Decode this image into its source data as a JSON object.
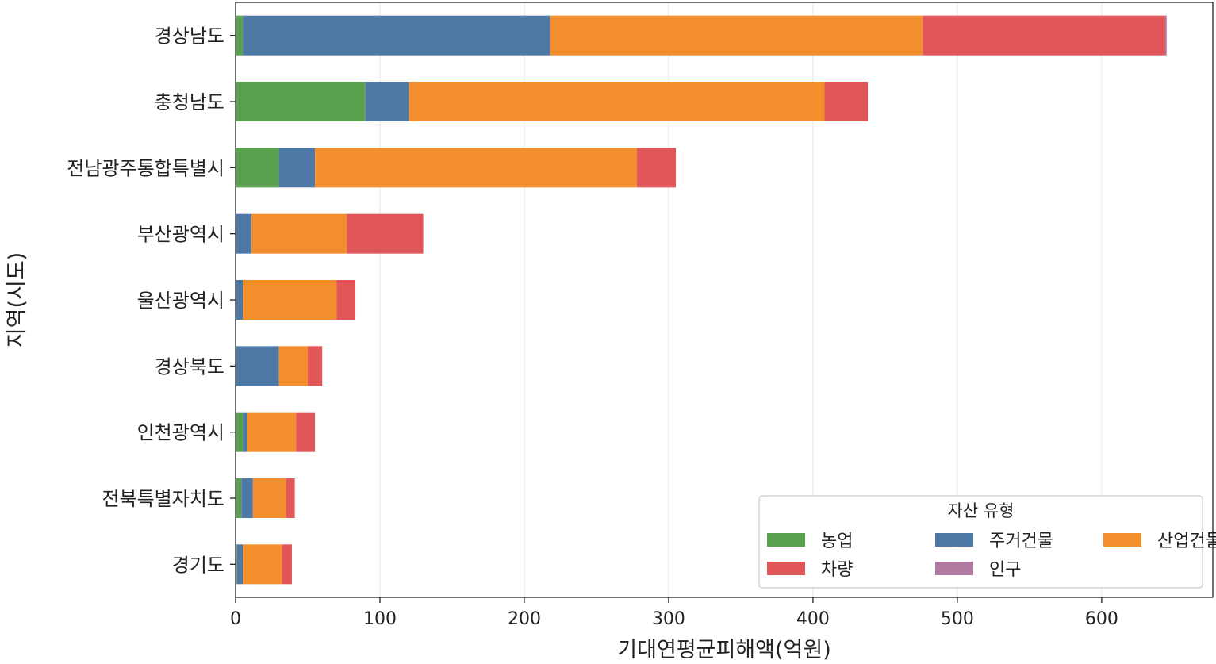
{
  "chart_data": {
    "type": "bar",
    "orientation": "horizontal",
    "stacked": true,
    "categories": [
      "경상남도",
      "충청남도",
      "전남광주통합특별시",
      "부산광역시",
      "울산광역시",
      "경상북도",
      "인천광역시",
      "전북특별자치도",
      "경기도"
    ],
    "series": [
      {
        "name": "농업",
        "color": "#59a14f",
        "values": [
          5,
          90,
          30,
          0,
          0,
          0,
          5,
          4,
          1
        ]
      },
      {
        "name": "주거건물",
        "color": "#4e79a7",
        "values": [
          213,
          30,
          25,
          11,
          5,
          30,
          3,
          8,
          4
        ]
      },
      {
        "name": "산업건물",
        "color": "#f28e2b",
        "values": [
          258,
          288,
          223,
          66,
          65,
          20,
          34,
          23,
          27
        ]
      },
      {
        "name": "차량",
        "color": "#e15759",
        "values": [
          168,
          30,
          27,
          53,
          13,
          10,
          13,
          6,
          7
        ]
      },
      {
        "name": "인구",
        "color": "#b07aa1",
        "values": [
          1,
          0,
          0,
          0,
          0,
          0,
          0,
          0,
          0
        ]
      }
    ],
    "xlabel": "기대연평균피해액(억원)",
    "ylabel": "지역(시도)",
    "xlim": [
      0,
      677
    ],
    "xticks": [
      0,
      100,
      200,
      300,
      400,
      500,
      600
    ],
    "grid": "x",
    "legend": {
      "title": "자산 유형",
      "placement": "bottom-right",
      "columns": 3
    }
  }
}
